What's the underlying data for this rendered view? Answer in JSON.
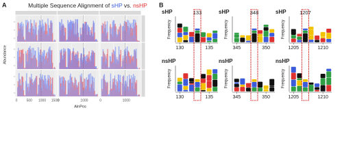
{
  "panel_a": {
    "label": "A",
    "title_parts": [
      "Multiple Sequence Alignment of ",
      "sHP",
      " vs. ",
      "nsHP"
    ],
    "x_label": "AlnPos",
    "y_label": "Abundance",
    "xticks": [
      0,
      500,
      1000,
      1500
    ],
    "xlim": [
      0,
      1500
    ]
  },
  "panel_b": {
    "label": "B",
    "y_label": "Frequency",
    "rows": [
      "sHP",
      "nsHP"
    ],
    "columns": [
      {
        "position": 133,
        "xticks": [
          130,
          135
        ]
      },
      {
        "position": 348,
        "xticks": [
          345,
          350
        ]
      },
      {
        "position": 1207,
        "xticks": [
          1205,
          1210
        ]
      }
    ]
  }
}
